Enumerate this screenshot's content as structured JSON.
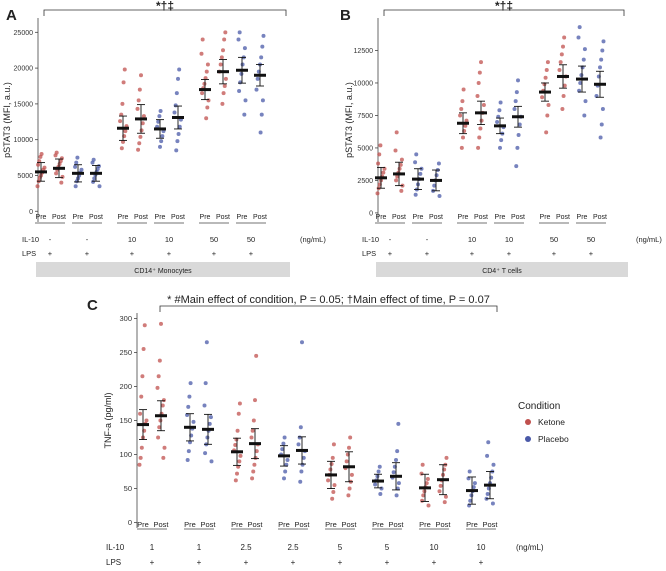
{
  "panel_letters": [
    "A",
    "B",
    "C"
  ],
  "significance_mark": "*†‡",
  "colors": {
    "ketone": "#c0504d",
    "placebo": "#4a59a8",
    "summary": "#111111",
    "strip": "#d9d9d9",
    "axis": "#444444"
  },
  "legend": {
    "title": "Condition",
    "items": [
      "Ketone",
      "Placebo"
    ]
  },
  "chart_data": [
    {
      "panel": "A",
      "type": "scatter",
      "title": "",
      "ylabel": "pSTAT3 (MFI, a.u.)",
      "ylim": [
        -1500,
        27000
      ],
      "yticks": [
        0,
        5000,
        10000,
        15000,
        20000,
        25000
      ],
      "group_labels": [
        "Pre",
        "Post"
      ],
      "row_labels": [
        "IL-10",
        "LPS"
      ],
      "units_label": "(ng/mL)",
      "cell_strip": "CD14⁺ Monocytes",
      "annotation": "*†‡",
      "series": [
        {
          "name": "Ketone",
          "il10": "-",
          "lps": "+",
          "pre_mean": 5500,
          "pre_err": 1300,
          "post_mean": 6000,
          "post_err": 1300,
          "pre_points": [
            3500,
            4200,
            4700,
            5000,
            5400,
            5800,
            6100,
            6500,
            7000,
            7600,
            8000
          ],
          "post_points": [
            4000,
            4800,
            5300,
            5800,
            6200,
            6600,
            7000,
            7400,
            7800,
            8200
          ]
        },
        {
          "name": "Placebo",
          "il10": "-",
          "lps": "+",
          "pre_mean": 5300,
          "pre_err": 1200,
          "post_mean": 5300,
          "post_err": 1100,
          "pre_points": [
            3500,
            4200,
            4600,
            5000,
            5400,
            5800,
            6200,
            6800,
            7500
          ],
          "post_points": [
            3500,
            4100,
            4600,
            5100,
            5500,
            5900,
            6300,
            6800,
            7200
          ]
        },
        {
          "name": "Ketone",
          "il10": "10",
          "lps": "+",
          "pre_mean": 11600,
          "pre_err": 1700,
          "post_mean": 12900,
          "post_err": 2000,
          "pre_points": [
            8800,
            9700,
            10500,
            11200,
            11900,
            12600,
            13500,
            15000,
            18000,
            19800
          ],
          "post_points": [
            8600,
            9500,
            10400,
            11300,
            12300,
            13300,
            14300,
            15500,
            17000,
            19000
          ]
        },
        {
          "name": "Placebo",
          "il10": "10",
          "lps": "+",
          "pre_mean": 11500,
          "pre_err": 1300,
          "post_mean": 13100,
          "post_err": 1600,
          "pre_points": [
            9000,
            9800,
            10500,
            11200,
            11800,
            12500,
            13300,
            14000
          ],
          "post_points": [
            8500,
            9800,
            10800,
            11800,
            12800,
            13800,
            14800,
            16500,
            18500,
            19800
          ]
        },
        {
          "name": "Ketone",
          "il10": "50",
          "lps": "+",
          "pre_mean": 17000,
          "pre_err": 1400,
          "post_mean": 19500,
          "post_err": 1700,
          "pre_points": [
            13000,
            14500,
            15500,
            16500,
            17200,
            17800,
            18600,
            19500,
            20500,
            22000,
            24000
          ],
          "post_points": [
            15000,
            16500,
            17500,
            18500,
            19500,
            20500,
            21500,
            22500,
            24000,
            25000
          ]
        },
        {
          "name": "Placebo",
          "il10": "50",
          "lps": "+",
          "pre_mean": 19700,
          "pre_err": 1800,
          "post_mean": 19000,
          "post_err": 1500,
          "pre_points": [
            13500,
            15500,
            16800,
            18000,
            19200,
            20500,
            21500,
            22800,
            24000,
            25000
          ],
          "post_points": [
            11000,
            13500,
            15500,
            17000,
            18500,
            19500,
            20500,
            21500,
            23000,
            24500
          ]
        }
      ]
    },
    {
      "panel": "B",
      "type": "scatter",
      "title": "",
      "ylabel": "pSTAT3 (MFI, a.u.)",
      "ylim": [
        -700,
        15000
      ],
      "yticks": [
        0,
        2500,
        5000,
        7500,
        10000,
        12500
      ],
      "group_labels": [
        "Pre",
        "Post"
      ],
      "row_labels": [
        "IL-10",
        "LPS"
      ],
      "units_label": "(ng/mL)",
      "cell_strip": "CD4⁺ T cells",
      "annotation": "*†‡",
      "series": [
        {
          "name": "Ketone",
          "il10": "-",
          "lps": "+",
          "pre_mean": 2700,
          "pre_err": 800,
          "post_mean": 3000,
          "post_err": 900,
          "pre_points": [
            1500,
            1900,
            2200,
            2500,
            2800,
            3100,
            3400,
            3800,
            4500,
            5200
          ],
          "post_points": [
            1700,
            2100,
            2500,
            2800,
            3100,
            3400,
            3700,
            4100,
            4800,
            6200
          ]
        },
        {
          "name": "Placebo",
          "il10": "-",
          "lps": "+",
          "pre_mean": 2600,
          "pre_err": 800,
          "post_mean": 2500,
          "post_err": 800,
          "pre_points": [
            1400,
            1800,
            2200,
            2600,
            3000,
            3400,
            3900,
            4500
          ],
          "post_points": [
            1300,
            1700,
            2100,
            2500,
            2900,
            3300,
            3800
          ]
        },
        {
          "name": "Ketone",
          "il10": "10",
          "lps": "+",
          "pre_mean": 6900,
          "pre_err": 800,
          "post_mean": 7700,
          "post_err": 900,
          "pre_points": [
            5000,
            5800,
            6300,
            6700,
            7100,
            7500,
            8000,
            8600,
            9500
          ],
          "post_points": [
            5000,
            5800,
            6500,
            7100,
            7700,
            8300,
            9000,
            10000,
            10800,
            11600
          ]
        },
        {
          "name": "Placebo",
          "il10": "10",
          "lps": "+",
          "pre_mean": 6700,
          "pre_err": 600,
          "post_mean": 7400,
          "post_err": 800,
          "pre_points": [
            5000,
            5600,
            6100,
            6600,
            7000,
            7400,
            7900,
            8500
          ],
          "post_points": [
            3600,
            5000,
            6000,
            6800,
            7400,
            8000,
            8600,
            9300,
            10200
          ]
        },
        {
          "name": "Ketone",
          "il10": "50",
          "lps": "+",
          "pre_mean": 9300,
          "pre_err": 700,
          "post_mean": 10500,
          "post_err": 900,
          "pre_points": [
            6200,
            7500,
            8300,
            8900,
            9400,
            9900,
            10400,
            11000,
            11600
          ],
          "post_points": [
            8000,
            9000,
            9800,
            10500,
            11000,
            11600,
            12200,
            12800,
            13500
          ]
        },
        {
          "name": "Placebo",
          "il10": "50",
          "lps": "+",
          "pre_mean": 10300,
          "pre_err": 1000,
          "post_mean": 9900,
          "post_err": 1000,
          "pre_points": [
            7500,
            8600,
            9400,
            10000,
            10600,
            11200,
            11800,
            12600,
            13500,
            14300
          ],
          "post_points": [
            5800,
            6800,
            8000,
            9000,
            9800,
            10500,
            11200,
            11800,
            12500,
            13200
          ]
        }
      ]
    },
    {
      "panel": "C",
      "type": "scatter",
      "title": "",
      "ylabel": "TNF-a (pg/ml)",
      "ylim": [
        -8,
        308
      ],
      "yticks": [
        0,
        50,
        100,
        150,
        200,
        250,
        300
      ],
      "group_labels": [
        "Pre",
        "Post"
      ],
      "row_labels": [
        "IL-10",
        "LPS"
      ],
      "units_label": "(ng/mL)",
      "annotation": "* #Main effect of condition, P = 0.05; †Main effect of time, P = 0.07",
      "series": [
        {
          "name": "Ketone",
          "il10": "1",
          "lps": "+",
          "pre_mean": 144,
          "pre_err": 22,
          "post_mean": 157,
          "post_err": 22,
          "pre_points": [
            85,
            95,
            110,
            125,
            135,
            145,
            150,
            160,
            185,
            215,
            255,
            290
          ],
          "post_points": [
            95,
            110,
            125,
            140,
            150,
            160,
            172,
            180,
            198,
            215,
            238,
            292
          ]
        },
        {
          "name": "Placebo",
          "il10": "1",
          "lps": "+",
          "pre_mean": 140,
          "pre_err": 20,
          "post_mean": 137,
          "post_err": 22,
          "pre_points": [
            92,
            105,
            118,
            128,
            138,
            148,
            158,
            170,
            185,
            205
          ],
          "post_points": [
            90,
            102,
            115,
            125,
            135,
            145,
            155,
            172,
            205,
            265
          ]
        },
        {
          "name": "Ketone",
          "il10": "2.5",
          "lps": "+",
          "pre_mean": 104,
          "pre_err": 20,
          "post_mean": 116,
          "post_err": 22,
          "pre_points": [
            62,
            72,
            82,
            90,
            98,
            106,
            114,
            122,
            135,
            160,
            175
          ],
          "post_points": [
            65,
            75,
            85,
            95,
            105,
            115,
            125,
            135,
            150,
            180,
            245
          ]
        },
        {
          "name": "Placebo",
          "il10": "2.5",
          "lps": "+",
          "pre_mean": 98,
          "pre_err": 15,
          "post_mean": 106,
          "post_err": 20,
          "pre_points": [
            65,
            75,
            85,
            92,
            100,
            108,
            116,
            125
          ],
          "post_points": [
            60,
            75,
            85,
            95,
            105,
            115,
            125,
            140,
            265
          ]
        },
        {
          "name": "Ketone",
          "il10": "5",
          "lps": "+",
          "pre_mean": 70,
          "pre_err": 20,
          "post_mean": 82,
          "post_err": 22,
          "pre_points": [
            35,
            45,
            55,
            62,
            70,
            78,
            86,
            95,
            115
          ],
          "post_points": [
            40,
            50,
            60,
            70,
            80,
            90,
            100,
            110,
            125
          ]
        },
        {
          "name": "Placebo",
          "il10": "5",
          "lps": "+",
          "pre_mean": 61,
          "pre_err": 10,
          "post_mean": 68,
          "post_err": 20,
          "pre_points": [
            42,
            50,
            56,
            62,
            68,
            75,
            82
          ],
          "post_points": [
            40,
            50,
            58,
            66,
            74,
            82,
            92,
            105,
            145
          ]
        },
        {
          "name": "Ketone",
          "il10": "10",
          "lps": "+",
          "pre_mean": 51,
          "pre_err": 20,
          "post_mean": 63,
          "post_err": 22,
          "pre_points": [
            25,
            32,
            40,
            46,
            52,
            58,
            64,
            72,
            85
          ],
          "post_points": [
            30,
            38,
            46,
            54,
            62,
            70,
            78,
            85,
            95
          ]
        },
        {
          "name": "Placebo",
          "il10": "10",
          "lps": "+",
          "pre_mean": 47,
          "pre_err": 20,
          "post_mean": 55,
          "post_err": 20,
          "pre_points": [
            25,
            32,
            40,
            46,
            52,
            58,
            65,
            75
          ],
          "post_points": [
            28,
            35,
            42,
            50,
            58,
            66,
            75,
            85,
            98,
            118
          ]
        }
      ]
    }
  ]
}
